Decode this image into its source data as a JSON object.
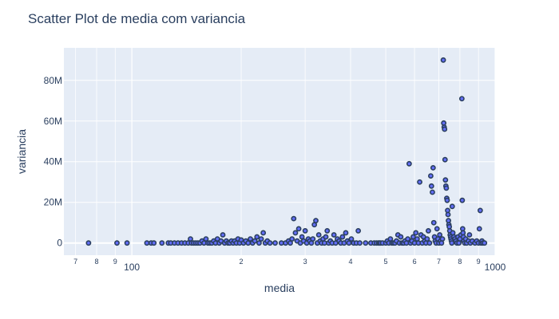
{
  "chart_data": {
    "type": "scatter",
    "title": "Scatter Plot de media com variancia",
    "xlabel": "media",
    "ylabel": "variancia",
    "x_scale": "log",
    "xlim": [
      65,
      1000
    ],
    "ylim": [
      -6000000,
      96000000
    ],
    "x_ticks": [
      {
        "value": 70,
        "label": "7",
        "minor": true
      },
      {
        "value": 80,
        "label": "8",
        "minor": true
      },
      {
        "value": 90,
        "label": "9",
        "minor": true
      },
      {
        "value": 100,
        "label": "100",
        "minor": false
      },
      {
        "value": 200,
        "label": "2",
        "minor": true
      },
      {
        "value": 300,
        "label": "3",
        "minor": true
      },
      {
        "value": 400,
        "label": "4",
        "minor": true
      },
      {
        "value": 500,
        "label": "5",
        "minor": true
      },
      {
        "value": 600,
        "label": "6",
        "minor": true
      },
      {
        "value": 700,
        "label": "7",
        "minor": true
      },
      {
        "value": 800,
        "label": "8",
        "minor": true
      },
      {
        "value": 900,
        "label": "9",
        "minor": true
      },
      {
        "value": 1000,
        "label": "1000",
        "minor": false
      }
    ],
    "y_ticks": [
      {
        "value": 0,
        "label": "0"
      },
      {
        "value": 20000000,
        "label": "20M"
      },
      {
        "value": 40000000,
        "label": "40M"
      },
      {
        "value": 60000000,
        "label": "60M"
      },
      {
        "value": 80000000,
        "label": "80M"
      }
    ],
    "grid": true,
    "marker_color": "#636efa",
    "marker_line_color": "#2a3f5f",
    "background_color": "#e5ecf6",
    "points": [
      [
        76,
        0
      ],
      [
        91,
        0
      ],
      [
        97,
        0
      ],
      [
        110,
        0
      ],
      [
        113,
        0
      ],
      [
        115,
        0
      ],
      [
        121,
        0
      ],
      [
        126,
        0
      ],
      [
        128,
        0
      ],
      [
        131,
        0
      ],
      [
        134,
        0
      ],
      [
        137,
        0
      ],
      [
        140,
        0
      ],
      [
        143,
        0
      ],
      [
        145,
        2000000
      ],
      [
        146,
        0
      ],
      [
        148,
        0
      ],
      [
        150,
        0
      ],
      [
        152,
        0
      ],
      [
        154,
        0
      ],
      [
        156,
        1000000
      ],
      [
        158,
        0
      ],
      [
        160,
        2000000
      ],
      [
        162,
        0
      ],
      [
        164,
        0
      ],
      [
        166,
        0
      ],
      [
        168,
        1000000
      ],
      [
        170,
        0
      ],
      [
        172,
        2000000
      ],
      [
        174,
        0
      ],
      [
        176,
        1000000
      ],
      [
        178,
        4000000
      ],
      [
        180,
        0
      ],
      [
        182,
        1000000
      ],
      [
        184,
        0
      ],
      [
        186,
        0
      ],
      [
        188,
        1000000
      ],
      [
        190,
        0
      ],
      [
        192,
        1000000
      ],
      [
        194,
        0
      ],
      [
        196,
        2000000
      ],
      [
        198,
        0
      ],
      [
        200,
        1500000
      ],
      [
        203,
        0
      ],
      [
        206,
        1000000
      ],
      [
        209,
        0
      ],
      [
        212,
        2000000
      ],
      [
        215,
        0
      ],
      [
        218,
        1000000
      ],
      [
        221,
        3000000
      ],
      [
        224,
        0
      ],
      [
        227,
        2000000
      ],
      [
        230,
        5000000
      ],
      [
        233,
        0
      ],
      [
        236,
        1000000
      ],
      [
        240,
        0
      ],
      [
        248,
        0
      ],
      [
        258,
        0
      ],
      [
        265,
        0
      ],
      [
        270,
        1000000
      ],
      [
        273,
        0
      ],
      [
        276,
        2000000
      ],
      [
        279,
        12000000
      ],
      [
        282,
        5000000
      ],
      [
        285,
        1000000
      ],
      [
        288,
        7000000
      ],
      [
        291,
        0
      ],
      [
        294,
        3000000
      ],
      [
        297,
        1000000
      ],
      [
        300,
        6000000
      ],
      [
        303,
        0
      ],
      [
        306,
        2000000
      ],
      [
        309,
        1000000
      ],
      [
        312,
        0
      ],
      [
        315,
        2000000
      ],
      [
        318,
        9000000
      ],
      [
        321,
        11000000
      ],
      [
        324,
        0
      ],
      [
        327,
        4000000
      ],
      [
        330,
        1000000
      ],
      [
        333,
        0
      ],
      [
        336,
        2000000
      ],
      [
        339,
        0
      ],
      [
        342,
        3000000
      ],
      [
        345,
        6000000
      ],
      [
        348,
        0
      ],
      [
        352,
        1000000
      ],
      [
        356,
        0
      ],
      [
        360,
        4000000
      ],
      [
        364,
        0
      ],
      [
        368,
        2000000
      ],
      [
        372,
        1000000
      ],
      [
        376,
        0
      ],
      [
        380,
        3000000
      ],
      [
        384,
        0
      ],
      [
        388,
        5000000
      ],
      [
        392,
        1000000
      ],
      [
        396,
        0
      ],
      [
        402,
        2000000
      ],
      [
        408,
        0
      ],
      [
        415,
        0
      ],
      [
        420,
        6000000
      ],
      [
        424,
        0
      ],
      [
        440,
        0
      ],
      [
        455,
        0
      ],
      [
        465,
        0
      ],
      [
        472,
        0
      ],
      [
        478,
        0
      ],
      [
        480,
        0
      ],
      [
        484,
        0
      ],
      [
        490,
        0
      ],
      [
        500,
        0
      ],
      [
        505,
        1000000
      ],
      [
        510,
        0
      ],
      [
        515,
        2000000
      ],
      [
        520,
        0
      ],
      [
        525,
        0
      ],
      [
        530,
        0
      ],
      [
        535,
        1000000
      ],
      [
        540,
        4000000
      ],
      [
        545,
        0
      ],
      [
        550,
        3000000
      ],
      [
        555,
        0
      ],
      [
        560,
        0
      ],
      [
        565,
        1000000
      ],
      [
        570,
        0
      ],
      [
        575,
        2000000
      ],
      [
        580,
        39000000
      ],
      [
        585,
        0
      ],
      [
        590,
        1000000
      ],
      [
        595,
        3000000
      ],
      [
        600,
        0
      ],
      [
        605,
        5000000
      ],
      [
        610,
        2000000
      ],
      [
        615,
        0
      ],
      [
        620,
        30000000
      ],
      [
        625,
        4000000
      ],
      [
        630,
        0
      ],
      [
        635,
        3000000
      ],
      [
        640,
        1000000
      ],
      [
        645,
        0
      ],
      [
        650,
        2000000
      ],
      [
        655,
        6000000
      ],
      [
        660,
        0
      ],
      [
        665,
        33000000
      ],
      [
        668,
        28000000
      ],
      [
        672,
        25000000
      ],
      [
        675,
        37000000
      ],
      [
        678,
        10000000
      ],
      [
        681,
        3000000
      ],
      [
        684,
        1000000
      ],
      [
        688,
        0
      ],
      [
        692,
        7000000
      ],
      [
        696,
        2000000
      ],
      [
        700,
        0
      ],
      [
        704,
        4000000
      ],
      [
        708,
        1000000
      ],
      [
        712,
        0
      ],
      [
        716,
        2000000
      ],
      [
        720,
        90000000
      ],
      [
        722,
        59000000
      ],
      [
        724,
        57000000
      ],
      [
        726,
        56000000
      ],
      [
        728,
        41000000
      ],
      [
        730,
        31000000
      ],
      [
        732,
        28000000
      ],
      [
        734,
        27000000
      ],
      [
        736,
        22000000
      ],
      [
        738,
        21000000
      ],
      [
        740,
        16000000
      ],
      [
        742,
        14000000
      ],
      [
        744,
        11000000
      ],
      [
        746,
        9000000
      ],
      [
        748,
        8000000
      ],
      [
        750,
        6000000
      ],
      [
        752,
        4000000
      ],
      [
        754,
        3000000
      ],
      [
        756,
        2000000
      ],
      [
        758,
        1000000
      ],
      [
        760,
        0
      ],
      [
        762,
        18000000
      ],
      [
        765,
        5000000
      ],
      [
        770,
        3000000
      ],
      [
        775,
        2000000
      ],
      [
        780,
        1000000
      ],
      [
        785,
        0
      ],
      [
        790,
        3000000
      ],
      [
        795,
        0
      ],
      [
        800,
        2000000
      ],
      [
        805,
        4000000
      ],
      [
        810,
        71000000
      ],
      [
        812,
        21000000
      ],
      [
        814,
        7000000
      ],
      [
        816,
        5000000
      ],
      [
        818,
        3000000
      ],
      [
        820,
        1000000
      ],
      [
        825,
        0
      ],
      [
        830,
        2000000
      ],
      [
        835,
        0
      ],
      [
        845,
        1000000
      ],
      [
        850,
        4000000
      ],
      [
        855,
        0
      ],
      [
        865,
        1000000
      ],
      [
        880,
        0
      ],
      [
        890,
        1000000
      ],
      [
        900,
        0
      ],
      [
        905,
        7000000
      ],
      [
        910,
        16000000
      ],
      [
        915,
        0
      ],
      [
        920,
        1000000
      ],
      [
        925,
        0
      ],
      [
        935,
        0
      ]
    ]
  }
}
